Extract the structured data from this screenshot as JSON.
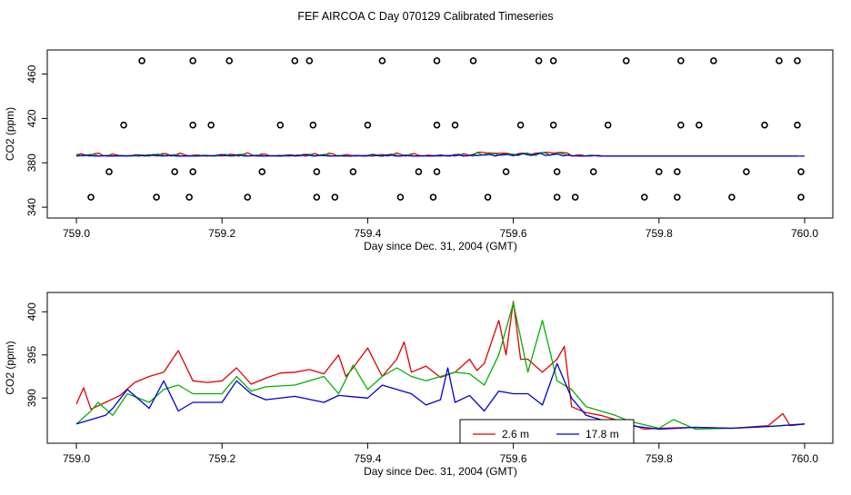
{
  "title": "FEF AIRCOA C  Day 070129  Calibrated Timeseries",
  "colors": {
    "red": "#e00000",
    "green": "#00b000",
    "blue": "#0000d0"
  },
  "chart_data": [
    {
      "type": "scatter",
      "xlabel": "Day since Dec. 31, 2004 (GMT)",
      "ylabel": "CO2 (ppm)",
      "xlim": [
        759.0,
        760.0
      ],
      "ylim": [
        336,
        476
      ],
      "xticks": [
        "759.0",
        "759.2",
        "759.4",
        "759.6",
        "759.8",
        "760.0"
      ],
      "yticks": [
        "340",
        "380",
        "420",
        "460"
      ],
      "marker_series": [
        {
          "y": 472,
          "x": [
            759.09,
            759.16,
            759.21,
            759.3,
            759.32,
            759.42,
            759.495,
            759.545,
            759.635,
            759.655,
            759.755,
            759.83,
            759.875,
            759.965,
            759.99
          ]
        },
        {
          "y": 414,
          "x": [
            759.065,
            759.16,
            759.185,
            759.28,
            759.325,
            759.4,
            759.495,
            759.52,
            759.61,
            759.655,
            759.73,
            759.83,
            759.855,
            759.945,
            759.99
          ]
        },
        {
          "y": 372,
          "x": [
            759.045,
            759.135,
            759.16,
            759.255,
            759.33,
            759.38,
            759.47,
            759.495,
            759.59,
            759.66,
            759.71,
            759.8,
            759.825,
            759.92,
            759.995
          ]
        },
        {
          "y": 349,
          "x": [
            759.02,
            759.11,
            759.155,
            759.235,
            759.33,
            759.355,
            759.445,
            759.49,
            759.565,
            759.66,
            759.685,
            759.78,
            759.825,
            759.9,
            759.995
          ]
        }
      ],
      "line_series": [
        {
          "color": "red",
          "base": 386,
          "amp": 3,
          "end_x": 759.99
        },
        {
          "color": "green",
          "base": 386,
          "amp": 2,
          "end_x": 759.99
        },
        {
          "color": "blue",
          "base": 386,
          "amp": 1.5,
          "end_x": 760.0
        }
      ]
    },
    {
      "type": "line",
      "xlabel": "Day since Dec. 31, 2004 (GMT)",
      "ylabel": "CO2 (ppm)",
      "xlim": [
        759.0,
        760.0
      ],
      "ylim": [
        385.5,
        401.5
      ],
      "xticks": [
        "759.0",
        "759.2",
        "759.4",
        "759.6",
        "759.8",
        "760.0"
      ],
      "yticks": [
        "390",
        "395",
        "400"
      ],
      "legend": {
        "position": "bottom-center",
        "entries": [
          {
            "label": "2.6 m",
            "color": "red"
          },
          {
            "label": "17.8 m",
            "color": "blue"
          }
        ]
      },
      "series": [
        {
          "color": "red",
          "x": [
            759.0,
            759.01,
            759.02,
            759.04,
            759.06,
            759.08,
            759.1,
            759.12,
            759.14,
            759.16,
            759.18,
            759.2,
            759.22,
            759.24,
            759.26,
            759.28,
            759.3,
            759.32,
            759.34,
            759.36,
            759.37,
            759.38,
            759.4,
            759.42,
            759.44,
            759.45,
            759.46,
            759.48,
            759.5,
            759.52,
            759.54,
            759.55,
            759.56,
            759.58,
            759.59,
            759.6,
            759.61,
            759.62,
            759.64,
            759.66,
            759.67,
            759.68,
            759.7,
            759.72,
            759.74,
            759.76,
            759.78,
            759.8,
            759.85,
            759.9,
            759.95,
            759.97,
            759.98,
            760.0
          ],
          "y": [
            389.3,
            391.2,
            388.7,
            389.5,
            390.3,
            391.8,
            392.5,
            393.0,
            395.5,
            392.0,
            391.8,
            392.0,
            393.5,
            391.6,
            392.3,
            392.9,
            393.0,
            393.3,
            392.8,
            395.0,
            392.5,
            393.5,
            395.8,
            392.5,
            394.5,
            396.5,
            393.0,
            393.7,
            392.4,
            393.0,
            394.5,
            393.2,
            394.0,
            399.0,
            395.0,
            401.2,
            394.5,
            394.5,
            393.0,
            394.5,
            396.0,
            389.0,
            388.3,
            388.0,
            387.5,
            387.0,
            386.4,
            386.5,
            386.6,
            386.5,
            386.8,
            388.2,
            386.8,
            387.0
          ]
        },
        {
          "color": "green",
          "x": [
            759.0,
            759.02,
            759.03,
            759.05,
            759.07,
            759.1,
            759.12,
            759.14,
            759.16,
            759.2,
            759.22,
            759.24,
            759.26,
            759.3,
            759.34,
            759.36,
            759.38,
            759.4,
            759.42,
            759.44,
            759.46,
            759.48,
            759.5,
            759.52,
            759.54,
            759.56,
            759.58,
            759.6,
            759.62,
            759.64,
            759.66,
            759.68,
            759.7,
            759.72,
            759.74,
            759.76,
            759.8,
            759.82,
            759.85,
            759.9,
            759.95,
            760.0
          ],
          "y": [
            387.0,
            388.5,
            389.5,
            388.0,
            390.5,
            389.5,
            391.0,
            391.5,
            390.5,
            390.5,
            392.5,
            390.8,
            391.3,
            391.5,
            392.5,
            390.5,
            393.8,
            391.0,
            392.5,
            393.5,
            392.5,
            392.0,
            392.5,
            393.0,
            392.8,
            391.5,
            395.0,
            401.0,
            393.0,
            399.0,
            392.0,
            391.0,
            389.0,
            388.5,
            388.0,
            387.3,
            386.5,
            387.5,
            386.4,
            386.5,
            386.7,
            387.0
          ]
        },
        {
          "color": "blue",
          "x": [
            759.0,
            759.02,
            759.04,
            759.05,
            759.07,
            759.1,
            759.12,
            759.14,
            759.16,
            759.2,
            759.22,
            759.24,
            759.26,
            759.3,
            759.34,
            759.36,
            759.4,
            759.42,
            759.44,
            759.46,
            759.48,
            759.5,
            759.51,
            759.52,
            759.54,
            759.56,
            759.58,
            759.6,
            759.62,
            759.64,
            759.66,
            759.68,
            759.7,
            759.72,
            759.74,
            759.76,
            759.8,
            759.85,
            759.9,
            759.95,
            760.0
          ],
          "y": [
            387.0,
            387.5,
            388.0,
            388.8,
            391.0,
            388.8,
            392.0,
            388.5,
            389.5,
            389.5,
            392.0,
            390.5,
            389.8,
            390.2,
            389.5,
            390.3,
            390.0,
            391.5,
            391.0,
            390.5,
            389.2,
            389.8,
            393.5,
            389.5,
            390.3,
            388.5,
            390.8,
            390.5,
            390.5,
            389.2,
            394.0,
            390.0,
            388.0,
            387.5,
            387.3,
            386.8,
            386.4,
            386.6,
            386.5,
            386.7,
            387.0
          ]
        }
      ]
    }
  ]
}
